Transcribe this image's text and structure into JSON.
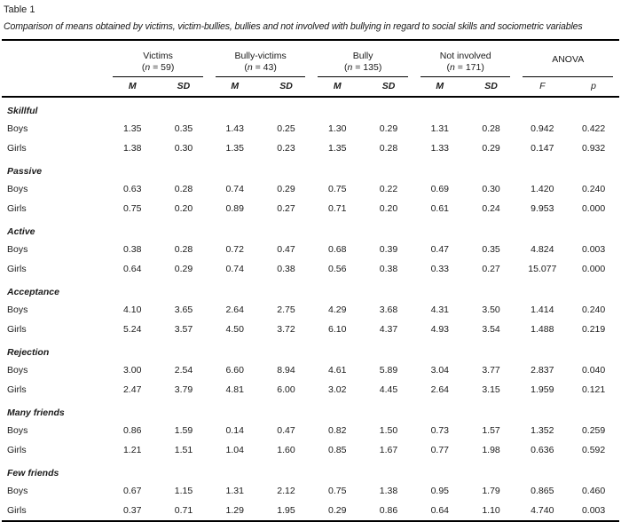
{
  "table": {
    "label": "Table 1",
    "caption": "Comparison of means obtained by victims, victim-bullies, bullies and not involved with bullying in regard to social skills and sociometric variables",
    "n_format": {
      "open": "(",
      "symbol": "n",
      "eq": " = ",
      "close": ")"
    },
    "groups": [
      {
        "name": "Victims",
        "n_value": "59"
      },
      {
        "name": "Bully-victims",
        "n_value": "43"
      },
      {
        "name": "Bully",
        "n_value": "135"
      },
      {
        "name": "Not involved",
        "n_value": "171"
      }
    ],
    "anova_label": "ANOVA",
    "subheaders": {
      "m": "M",
      "sd": "SD",
      "f": "F",
      "p": "p"
    },
    "sections": [
      {
        "name": "Skillful",
        "rows": [
          {
            "label": "Boys",
            "values": [
              "1.35",
              "0.35",
              "1.43",
              "0.25",
              "1.30",
              "0.29",
              "1.31",
              "0.28",
              "0.942",
              "0.422"
            ]
          },
          {
            "label": "Girls",
            "values": [
              "1.38",
              "0.30",
              "1.35",
              "0.23",
              "1.35",
              "0.28",
              "1.33",
              "0.29",
              "0.147",
              "0.932"
            ]
          }
        ]
      },
      {
        "name": "Passive",
        "rows": [
          {
            "label": "Boys",
            "values": [
              "0.63",
              "0.28",
              "0.74",
              "0.29",
              "0.75",
              "0.22",
              "0.69",
              "0.30",
              "1.420",
              "0.240"
            ]
          },
          {
            "label": "Girls",
            "values": [
              "0.75",
              "0.20",
              "0.89",
              "0.27",
              "0.71",
              "0.20",
              "0.61",
              "0.24",
              "9.953",
              "0.000"
            ]
          }
        ]
      },
      {
        "name": "Active",
        "rows": [
          {
            "label": "Boys",
            "values": [
              "0.38",
              "0.28",
              "0.72",
              "0.47",
              "0.68",
              "0.39",
              "0.47",
              "0.35",
              "4.824",
              "0.003"
            ]
          },
          {
            "label": "Girls",
            "values": [
              "0.64",
              "0.29",
              "0.74",
              "0.38",
              "0.56",
              "0.38",
              "0.33",
              "0.27",
              "15.077",
              "0.000"
            ]
          }
        ]
      },
      {
        "name": "Acceptance",
        "rows": [
          {
            "label": "Boys",
            "values": [
              "4.10",
              "3.65",
              "2.64",
              "2.75",
              "4.29",
              "3.68",
              "4.31",
              "3.50",
              "1.414",
              "0.240"
            ]
          },
          {
            "label": "Girls",
            "values": [
              "5.24",
              "3.57",
              "4.50",
              "3.72",
              "6.10",
              "4.37",
              "4.93",
              "3.54",
              "1.488",
              "0.219"
            ]
          }
        ]
      },
      {
        "name": "Rejection",
        "rows": [
          {
            "label": "Boys",
            "values": [
              "3.00",
              "2.54",
              "6.60",
              "8.94",
              "4.61",
              "5.89",
              "3.04",
              "3.77",
              "2.837",
              "0.040"
            ]
          },
          {
            "label": "Girls",
            "values": [
              "2.47",
              "3.79",
              "4.81",
              "6.00",
              "3.02",
              "4.45",
              "2.64",
              "3.15",
              "1.959",
              "0.121"
            ]
          }
        ]
      },
      {
        "name": "Many friends",
        "rows": [
          {
            "label": "Boys",
            "values": [
              "0.86",
              "1.59",
              "0.14",
              "0.47",
              "0.82",
              "1.50",
              "0.73",
              "1.57",
              "1.352",
              "0.259"
            ]
          },
          {
            "label": "Girls",
            "values": [
              "1.21",
              "1.51",
              "1.04",
              "1.60",
              "0.85",
              "1.67",
              "0.77",
              "1.98",
              "0.636",
              "0.592"
            ]
          }
        ]
      },
      {
        "name": "Few friends",
        "rows": [
          {
            "label": "Boys",
            "values": [
              "0.67",
              "1.15",
              "1.31",
              "2.12",
              "0.75",
              "1.38",
              "0.95",
              "1.79",
              "0.865",
              "0.460"
            ]
          },
          {
            "label": "Girls",
            "values": [
              "0.37",
              "0.71",
              "1.29",
              "1.95",
              "0.29",
              "0.86",
              "0.64",
              "1.10",
              "4.740",
              "0.003"
            ]
          }
        ]
      }
    ]
  }
}
